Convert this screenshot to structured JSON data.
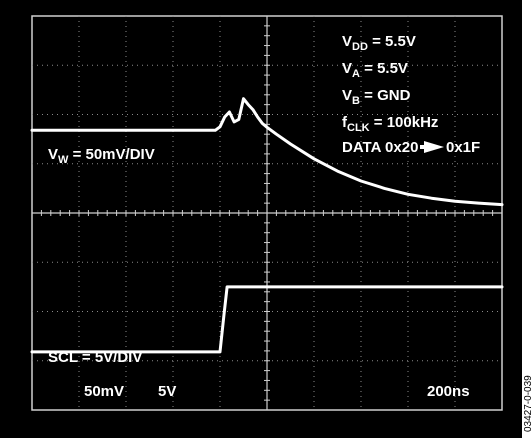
{
  "chart_data": {
    "type": "line",
    "title": "",
    "xlabel": "",
    "ylabel": "",
    "grid": true,
    "divisions": {
      "x": 10,
      "y": 8
    },
    "xlim": [
      0,
      10
    ],
    "ylim": [
      0,
      8
    ],
    "conditions": [
      {
        "key": "vdd",
        "prefix": "V",
        "sub": "DD",
        "suffix": " = 5.5V"
      },
      {
        "key": "va",
        "prefix": "V",
        "sub": "A",
        "suffix": " = 5.5V"
      },
      {
        "key": "vb",
        "prefix": "V",
        "sub": "B",
        "suffix": " = GND"
      },
      {
        "key": "fclk",
        "prefix": "f",
        "sub": "CLK",
        "suffix": " = 100kHz"
      },
      {
        "key": "data",
        "prefix": "DATA 0x20",
        "sub": "",
        "suffix": "0x1F",
        "arrow": true
      }
    ],
    "channel_labels": [
      {
        "key": "vw",
        "prefix": "V",
        "sub": "W",
        "suffix": " = 50mV/DIV"
      },
      {
        "key": "scl",
        "prefix": "SCL = 5V/DIV",
        "sub": "",
        "suffix": ""
      }
    ],
    "scale_readouts": {
      "ch1": "50mV",
      "ch2": "5V",
      "time": "200ns"
    },
    "series": [
      {
        "name": "",
        "key": "vw",
        "x": [
          0,
          1,
          2,
          3,
          3.9,
          4.0,
          4.1,
          4.2,
          4.3,
          4.4,
          4.5,
          4.6,
          4.7,
          4.8,
          4.9,
          5.0,
          5.2,
          5.5,
          6.0,
          6.5,
          7.0,
          7.5,
          8.0,
          8.5,
          9.0,
          9.5,
          10.0
        ],
        "y": [
          5.68,
          5.68,
          5.68,
          5.68,
          5.68,
          5.75,
          5.95,
          6.05,
          5.85,
          5.9,
          6.32,
          6.2,
          6.1,
          5.95,
          5.82,
          5.74,
          5.6,
          5.4,
          5.1,
          4.85,
          4.65,
          4.5,
          4.38,
          4.3,
          4.24,
          4.2,
          4.17
        ]
      },
      {
        "name": "",
        "key": "scl",
        "x": [
          0,
          4.0,
          4.08,
          4.15,
          10
        ],
        "y": [
          1.18,
          1.18,
          1.9,
          2.5,
          2.5
        ]
      }
    ]
  },
  "figure_code": "03427-0-039"
}
